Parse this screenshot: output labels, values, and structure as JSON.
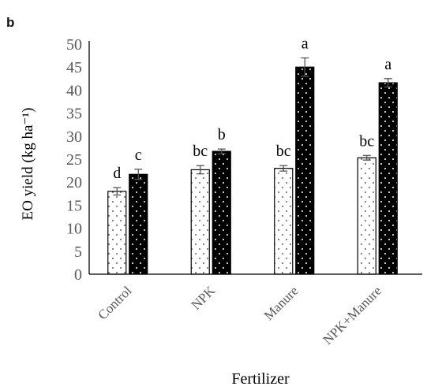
{
  "chart_data": {
    "type": "bar",
    "panel_label": "b",
    "categories": [
      "Control",
      "NPK",
      "Manure",
      "NPK+Manure"
    ],
    "series": [
      {
        "pattern": "white-dotted",
        "values": [
          18,
          22.7,
          23,
          25.3
        ],
        "errors": [
          0.8,
          0.9,
          0.6,
          0.5
        ],
        "labels": [
          "d",
          "bc",
          "bc",
          "bc"
        ]
      },
      {
        "pattern": "black-dotted",
        "values": [
          21.7,
          26.7,
          45,
          41.6
        ],
        "errors": [
          1.1,
          0.5,
          2.0,
          0.9
        ],
        "labels": [
          "c",
          "b",
          "a",
          "a"
        ]
      }
    ],
    "xlabel": "Fertilizer",
    "ylabel": "EO yield (kg ha⁻¹)",
    "ylim": [
      0,
      50
    ],
    "yticks": [
      "0",
      "5",
      "10",
      "15",
      "20",
      "25",
      "30",
      "35",
      "40",
      "45",
      "50"
    ],
    "grid": false,
    "colors": {
      "dark_bar": "#000000",
      "light_bar": "#ffffff",
      "axis": "#000000",
      "tick_text": "#595959",
      "error_bar": "#555555"
    }
  }
}
